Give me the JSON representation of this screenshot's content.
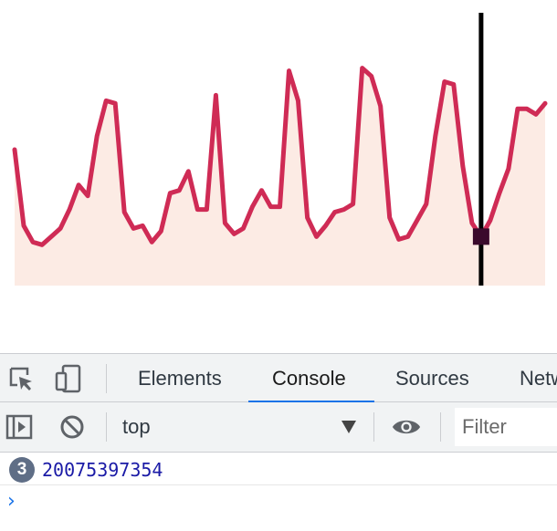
{
  "chart_data": {
    "type": "area",
    "x": [
      0,
      1,
      2,
      3,
      4,
      5,
      6,
      7,
      8,
      9,
      10,
      11,
      12,
      13,
      14,
      15,
      16,
      17,
      18,
      19,
      20,
      21,
      22,
      23,
      24,
      25,
      26,
      27,
      28,
      29,
      30,
      31,
      32,
      33,
      34,
      35,
      36,
      37,
      38,
      39,
      40,
      41,
      42,
      43,
      44,
      45,
      46,
      47,
      48,
      49,
      50,
      51,
      52,
      53,
      54,
      55,
      56,
      57,
      58
    ],
    "series": [
      {
        "values": [
          50,
          22,
          16,
          15,
          18,
          21,
          28,
          37,
          33,
          55,
          68,
          67,
          27,
          21,
          22,
          16,
          20,
          34,
          35,
          42,
          28,
          28,
          70,
          23,
          19,
          21,
          29,
          35,
          29,
          29,
          79,
          68,
          25,
          18,
          22,
          27,
          28,
          30,
          80,
          77,
          66,
          25,
          17,
          18,
          24,
          30,
          55,
          75,
          74,
          44,
          23,
          18,
          24,
          34,
          43,
          65,
          65,
          63,
          67
        ],
        "stroke": "#cf2b55",
        "fill": "#fcebe4"
      }
    ],
    "ylim": [
      0,
      100
    ],
    "cursor_index": 51,
    "cursor_color": "#000000",
    "marker_color": "#3a0a2c",
    "grid": false
  },
  "devtools": {
    "tabs": [
      {
        "label": "Elements",
        "active": false
      },
      {
        "label": "Console",
        "active": true
      },
      {
        "label": "Sources",
        "active": false
      },
      {
        "label": "Netw",
        "active": false
      }
    ],
    "icons": {
      "inspect": "inspect-element-icon",
      "device": "device-toolbar-icon",
      "sidebar": "show-sidebar-icon",
      "clear": "clear-console-icon",
      "eye": "live-expression-icon"
    },
    "context": {
      "value": "top"
    },
    "filter": {
      "placeholder": "Filter"
    },
    "log": {
      "count": "3",
      "value": "20075397354"
    },
    "accent_color": "#1a73e8"
  }
}
